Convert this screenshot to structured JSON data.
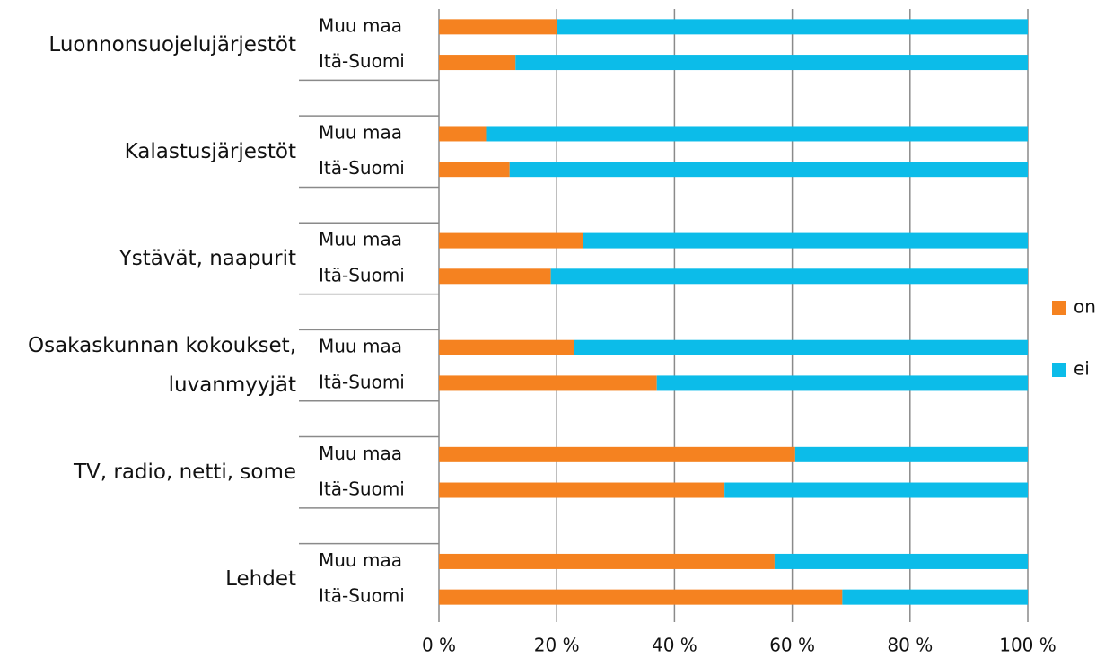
{
  "chart_data": {
    "type": "stacked_bar_horizontal",
    "groups": [
      "Luonnonsuojelujärjestöt",
      "Kalastusjärjestöt",
      "Ystävät, naapurit",
      "Osakaskunnan kokoukset,\nluvanmyyjät",
      "TV, radio, netti, some",
      "Lehdet"
    ],
    "categories": [
      "Muu maa",
      "Itä-Suomi",
      "Muu maa",
      "Itä-Suomi",
      "Muu maa",
      "Itä-Suomi",
      "Muu maa",
      "Itä-Suomi",
      "Muu maa",
      "Itä-Suomi",
      "Muu maa",
      "Itä-Suomi"
    ],
    "series": [
      {
        "name": "on",
        "color": "#f58220",
        "values": [
          20,
          13,
          8,
          12,
          24.5,
          19,
          23,
          37,
          60.5,
          48.5,
          57,
          68.5
        ]
      },
      {
        "name": "ei",
        "color": "#0cbce9",
        "values": [
          80,
          87,
          92,
          88,
          75.5,
          81,
          77,
          63,
          39.5,
          51.5,
          43,
          31.5
        ]
      }
    ],
    "xlim": [
      0,
      100
    ],
    "xticks": [
      {
        "value": 0,
        "label": "0 %"
      },
      {
        "value": 20,
        "label": "20 %"
      },
      {
        "value": 40,
        "label": "40 %"
      },
      {
        "value": 60,
        "label": "60 %"
      },
      {
        "value": 80,
        "label": "80 %"
      },
      {
        "value": 100,
        "label": "100 %"
      }
    ],
    "grid": true,
    "legend": "right"
  }
}
